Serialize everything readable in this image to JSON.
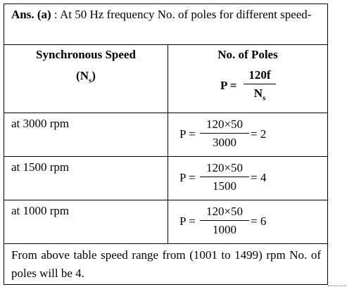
{
  "intro": {
    "label": "Ans. (a)",
    "text": ": At 50 Hz frequency No. of poles for different speed-"
  },
  "table": {
    "headers": [
      {
        "title": "Synchronous Speed",
        "symbol_open": "(N",
        "subscript": "s",
        "symbol_close": ")"
      },
      {
        "title": "No. of Poles",
        "formula": {
          "lhs": "P =",
          "numerator": "120f",
          "denominator": "N",
          "subscript": "s"
        }
      }
    ],
    "rows": [
      {
        "speed": "at 3000 rpm",
        "lhs": "P =",
        "numerator": "120×50",
        "denominator": "3000",
        "result": "= 2"
      },
      {
        "speed": "at 1500 rpm",
        "lhs": "P =",
        "numerator": "120×50",
        "denominator": "1500",
        "result": "= 4"
      },
      {
        "speed": "at 1000 rpm",
        "lhs": "P =",
        "numerator": "120×50",
        "denominator": "1000",
        "result": "= 6"
      }
    ]
  },
  "footer": "From above table speed range from (1001 to 1499) rpm No. of poles will be 4."
}
